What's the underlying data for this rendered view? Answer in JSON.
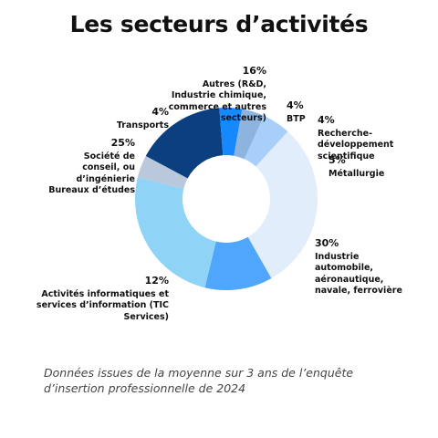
{
  "chart_data": {
    "type": "donut",
    "title": "Les secteurs d’activités",
    "categories": [
      "Autres (R&D, Industrie chimique, commerce et autres secteurs)",
      "BTP",
      "Recherche-développement scientifique",
      "Métallurgie",
      "Industrie automobile, aéronautique, navale, ferrovière",
      "Activités informatiques et services d’information (TIC Services)",
      "Société de conseil, ou d’ingénierie Bureaux d’études",
      "Transports"
    ],
    "values": [
      16,
      4,
      4,
      5,
      30,
      12,
      25,
      4
    ],
    "value_labels": [
      "16%",
      "4%",
      "4%",
      "5%",
      "30%",
      "12%",
      "25%",
      "4%"
    ],
    "colors": [
      "#0b3f80",
      "#1689ff",
      "#8db3df",
      "#a7cffa",
      "#e2edfb",
      "#4fa6fb",
      "#8fd4f7",
      "#b9c9db"
    ],
    "note": "Données issues de la moyenne sur 3 ans de l’enquête d’insertion professionnelle de 2024"
  }
}
